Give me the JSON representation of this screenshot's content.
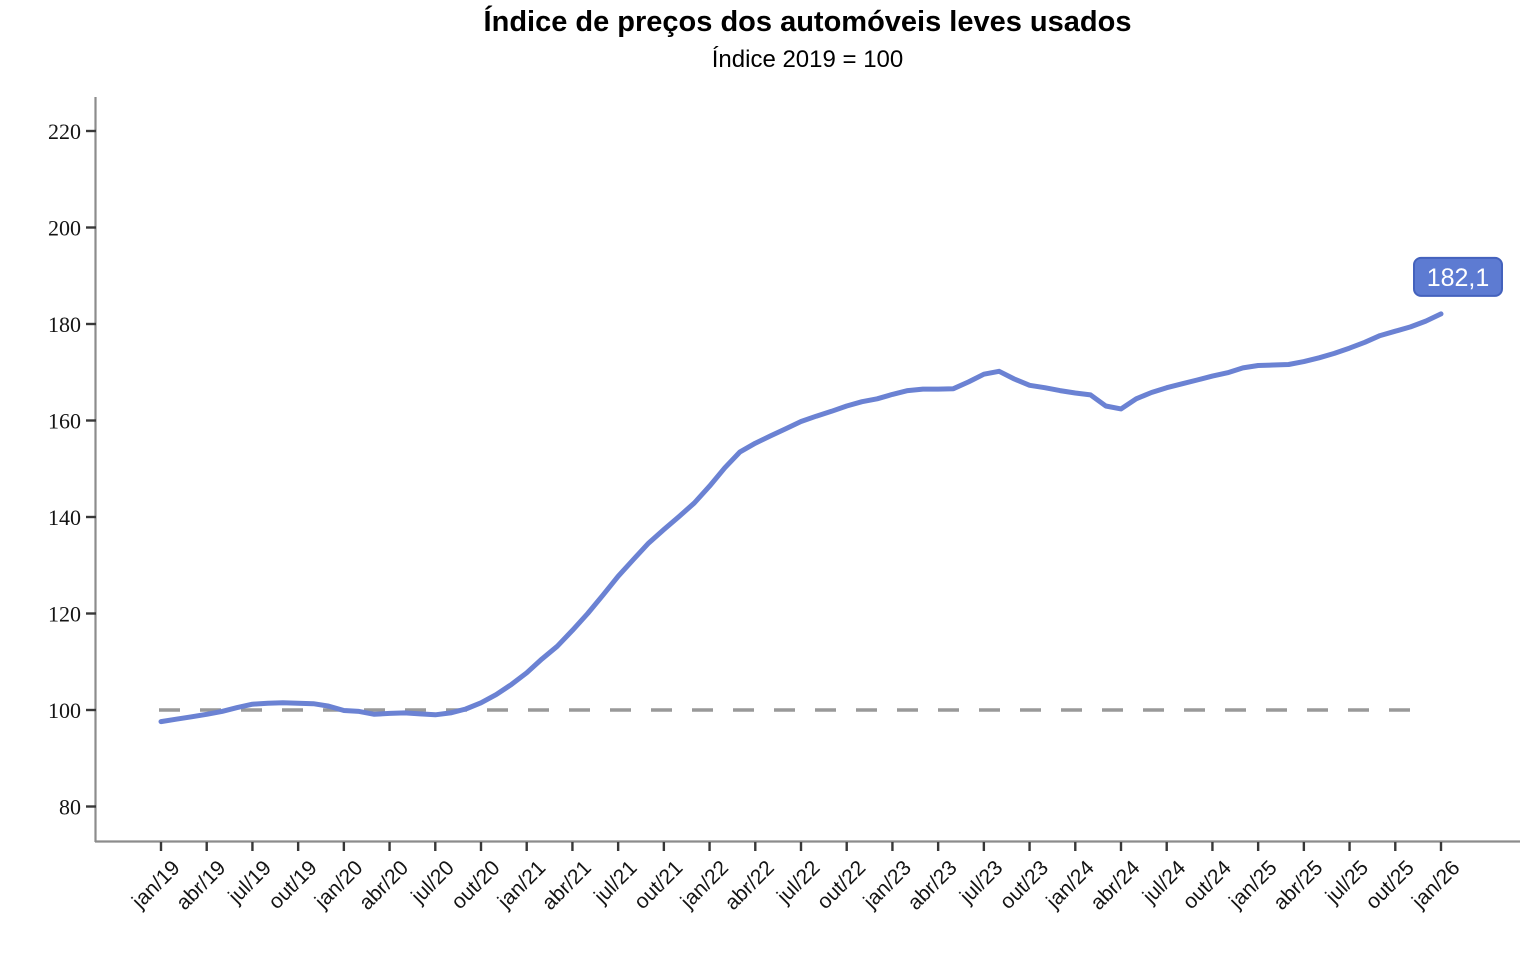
{
  "chart_data": {
    "type": "line",
    "title": "Índice de preços dos automóveis leves usados",
    "subtitle": "Índice 2019 = 100",
    "x_tick_labels": [
      "jan/19",
      "abr/19",
      "jul/19",
      "out/19",
      "jan/20",
      "abr/20",
      "jul/20",
      "out/20",
      "jan/21",
      "abr/21",
      "jul/21",
      "out/21",
      "jan/22",
      "abr/22",
      "jul/22",
      "out/22",
      "jan/23",
      "abr/23",
      "jul/23",
      "out/23",
      "jan/24",
      "abr/24",
      "jul/24",
      "out/24",
      "jan/25",
      "abr/25",
      "jul/25",
      "out/25",
      "jan/26"
    ],
    "x_tick_every": 3,
    "values": [
      97.6,
      98.1,
      98.6,
      99.1,
      99.7,
      100.5,
      101.2,
      101.4,
      101.5,
      101.4,
      101.3,
      100.8,
      99.9,
      99.7,
      99.1,
      99.3,
      99.4,
      99.2,
      99.0,
      99.4,
      100.2,
      101.5,
      103.2,
      105.3,
      107.7,
      110.6,
      113.2,
      116.5,
      120.0,
      123.8,
      127.7,
      131.2,
      134.6,
      137.4,
      140.1,
      142.9,
      146.4,
      150.2,
      153.5,
      155.3,
      156.8,
      158.3,
      159.8,
      160.9,
      161.9,
      163.0,
      163.9,
      164.5,
      165.4,
      166.2,
      166.5,
      166.5,
      166.6,
      168.0,
      169.6,
      170.2,
      168.6,
      167.3,
      166.8,
      166.2,
      165.7,
      165.3,
      163.0,
      162.4,
      164.5,
      165.8,
      166.8,
      167.6,
      168.4,
      169.2,
      169.9,
      170.9,
      171.4,
      171.5,
      171.6,
      172.2,
      173.0,
      173.9,
      175.0,
      176.2,
      177.6,
      178.5,
      179.4,
      180.6,
      182.1
    ],
    "yticks": [
      80,
      100,
      120,
      140,
      160,
      180,
      200,
      220
    ],
    "ylim": [
      72.6,
      227.0
    ],
    "ref_line": {
      "value": 100,
      "style": "dashed",
      "color": "#999999"
    },
    "end_label": "182,1",
    "grid": false,
    "legend": false,
    "colors": {
      "line": "#6b82d3",
      "label_box_fill": "#5d7bd2",
      "label_box_border": "#4462bd",
      "label_text": "#ffffff",
      "axis": "#8c8c8c",
      "ticks": "#383838",
      "tick_text": "#141414"
    }
  }
}
